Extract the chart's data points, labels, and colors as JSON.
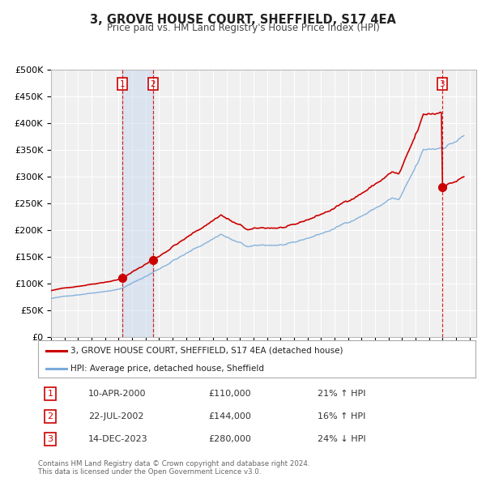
{
  "title": "3, GROVE HOUSE COURT, SHEFFIELD, S17 4EA",
  "subtitle": "Price paid vs. HM Land Registry's House Price Index (HPI)",
  "ylim": [
    0,
    500000
  ],
  "yticks": [
    0,
    50000,
    100000,
    150000,
    200000,
    250000,
    300000,
    350000,
    400000,
    450000,
    500000
  ],
  "ytick_labels": [
    "£0",
    "£50K",
    "£100K",
    "£150K",
    "£200K",
    "£250K",
    "£300K",
    "£350K",
    "£400K",
    "£450K",
    "£500K"
  ],
  "xlim_start": 1995.0,
  "xlim_end": 2026.5,
  "xticks": [
    1995,
    1996,
    1997,
    1998,
    1999,
    2000,
    2001,
    2002,
    2003,
    2004,
    2005,
    2006,
    2007,
    2008,
    2009,
    2010,
    2011,
    2012,
    2013,
    2014,
    2015,
    2016,
    2017,
    2018,
    2019,
    2020,
    2021,
    2022,
    2023,
    2024,
    2025,
    2026
  ],
  "property_color": "#cc0000",
  "hpi_color": "#7aabdb",
  "background_color": "#f0f0f0",
  "grid_color": "#ffffff",
  "legend_label_property": "3, GROVE HOUSE COURT, SHEFFIELD, S17 4EA (detached house)",
  "legend_label_hpi": "HPI: Average price, detached house, Sheffield",
  "shade_color": "#c8d8ee",
  "transactions": [
    {
      "num": 1,
      "date": 2000.27,
      "price": 110000,
      "date_str": "10-APR-2000",
      "price_str": "£110,000",
      "hpi_pct": "21%",
      "direction": "↑"
    },
    {
      "num": 2,
      "date": 2002.55,
      "price": 144000,
      "date_str": "22-JUL-2002",
      "price_str": "£144,000",
      "hpi_pct": "16%",
      "direction": "↑"
    },
    {
      "num": 3,
      "date": 2023.96,
      "price": 280000,
      "date_str": "14-DEC-2023",
      "price_str": "£280,000",
      "hpi_pct": "24%",
      "direction": "↓"
    }
  ],
  "footer_line1": "Contains HM Land Registry data © Crown copyright and database right 2024.",
  "footer_line2": "This data is licensed under the Open Government Licence v3.0."
}
